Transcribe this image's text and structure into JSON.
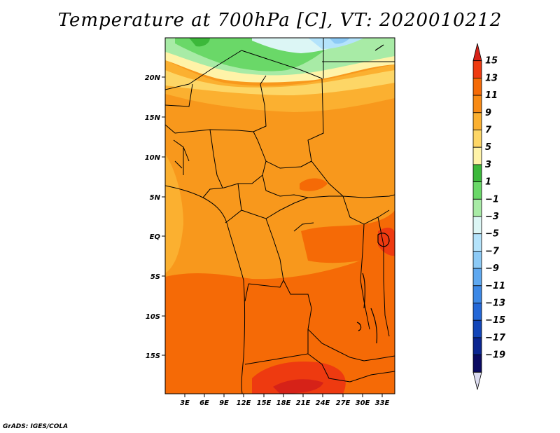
{
  "title": "Temperature at 700hPa [C], VT: 2020010212",
  "credit": "GrADS: IGES/COLA",
  "map": {
    "lat_labels": [
      "20N",
      "15N",
      "10N",
      "5N",
      "EQ",
      "5S",
      "10S",
      "15S"
    ],
    "lon_labels": [
      "3E",
      "6E",
      "9E",
      "12E",
      "15E",
      "18E",
      "21E",
      "24E",
      "27E",
      "30E",
      "33E"
    ]
  },
  "colorbar": {
    "labels": [
      "15",
      "13",
      "11",
      "9",
      "7",
      "5",
      "3",
      "1",
      "−1",
      "−3",
      "−5",
      "−7",
      "−9",
      "−11",
      "−13",
      "−15",
      "−17",
      "−19"
    ],
    "colors": [
      "#d62218",
      "#ee3a10",
      "#f56a06",
      "#f88a14",
      "#fbb030",
      "#fdd666",
      "#fff3a8",
      "#3cb83a",
      "#6ad868",
      "#a8eba6",
      "#dcf6f5",
      "#b4e3fb",
      "#8ccaf6",
      "#5ea8f0",
      "#3c88e6",
      "#2367d7",
      "#1245b8",
      "#0a2590",
      "#0a0a62",
      "#dcdcf0"
    ]
  }
}
